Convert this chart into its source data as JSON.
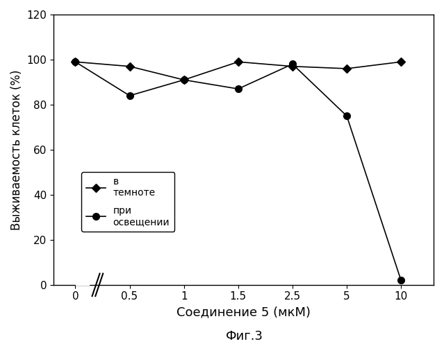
{
  "dark_x_pos": [
    0,
    1,
    2,
    3,
    4,
    5,
    6
  ],
  "dark_y": [
    99,
    97,
    91,
    99,
    97,
    96,
    99
  ],
  "light_x_pos": [
    0,
    1,
    2,
    3,
    4,
    5,
    6
  ],
  "light_y": [
    99,
    84,
    91,
    87,
    98,
    75,
    2
  ],
  "xlabel": "Соединение 5 (мкМ)",
  "ylabel": "Выживаемость клеток (%)",
  "figcaption": "Фиг.3",
  "legend_dark": "в\nтемноте",
  "legend_light": "при\nосвещении",
  "ylim": [
    0,
    120
  ],
  "yticks": [
    0,
    20,
    40,
    60,
    80,
    100,
    120
  ],
  "xtick_pos": [
    0,
    1,
    2,
    3,
    4,
    5,
    6
  ],
  "xticklabels": [
    "0",
    "0.5",
    "1",
    "1.5",
    "2.5",
    "5",
    "10"
  ],
  "xlim": [
    -0.4,
    6.6
  ],
  "bg_color": "#ffffff"
}
